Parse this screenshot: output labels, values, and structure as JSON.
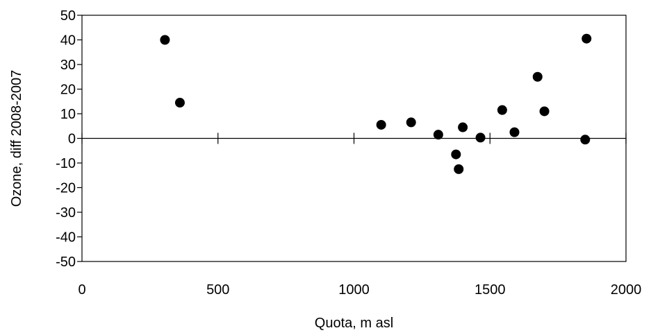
{
  "chart_data": {
    "type": "scatter",
    "title": "",
    "xlabel": "Quota, m asl",
    "ylabel": "Ozone, diff 2008-2007",
    "xlim": [
      0,
      2000
    ],
    "ylim": [
      -50,
      50
    ],
    "xticks": [
      0,
      500,
      1000,
      1500,
      2000
    ],
    "yticks": [
      50,
      40,
      30,
      20,
      10,
      0,
      -10,
      -20,
      -30,
      -40,
      -50
    ],
    "grid": false,
    "legend": "none",
    "marker_color": "#000000",
    "series": [
      {
        "x": [
          305,
          360,
          1100,
          1210,
          1310,
          1375,
          1385,
          1400,
          1465,
          1545,
          1590,
          1675,
          1700,
          1850,
          1855
        ],
        "y": [
          40,
          14.5,
          5.5,
          6.5,
          1.5,
          -6.5,
          -12.5,
          4.5,
          0.3,
          11.5,
          2.5,
          25,
          11,
          -0.5,
          40.5
        ]
      }
    ]
  }
}
